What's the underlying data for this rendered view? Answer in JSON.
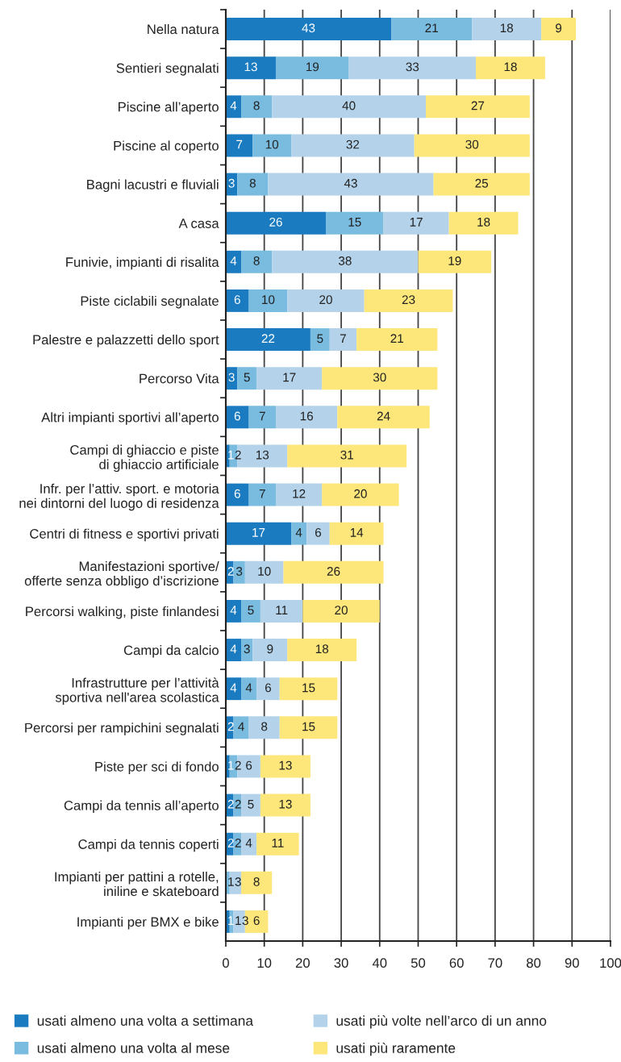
{
  "chart_data": {
    "type": "bar",
    "orientation": "horizontal",
    "stacked": true,
    "categories": [
      "Nella natura",
      "Sentieri segnalati",
      "Piscine all’aperto",
      "Piscine al coperto",
      "Bagni lacustri e fluviali",
      "A casa",
      "Funivie, impianti di risalita",
      "Piste ciclabili segnalate",
      "Palestre e palazzetti dello sport",
      "Percorso Vita",
      "Altri impianti sportivi all’aperto",
      "Campi di ghiaccio e piste\ndi ghiaccio artificiale",
      "Infr. per l’attiv. sport. e motoria\nnei dintorni del luogo di residenza",
      "Centri di fitness e sportivi privati",
      "Manifestazioni sportive/\nofferte senza obbligo d’iscrizione",
      "Percorsi walking, piste finlandesi",
      "Campi da calcio",
      "Infrastrutture per l’attività\nsportiva nell'area scolastica",
      "Percorsi per rampichini segnalati",
      "Piste per sci di fondo",
      "Campi da tennis all’aperto",
      "Campi da tennis coperti",
      "Impianti per pattini a rotelle,\niniline e skateboard",
      "Impianti per BMX e bike"
    ],
    "series": [
      {
        "name": "usati almeno una volta a settimana",
        "color": "#1b7bc0",
        "values": [
          43,
          13,
          4,
          7,
          3,
          26,
          4,
          6,
          22,
          3,
          6,
          1,
          6,
          17,
          2,
          4,
          4,
          4,
          2,
          1,
          2,
          2,
          0,
          1
        ],
        "value_labels": [
          "43",
          "13",
          "4",
          "7",
          "3",
          "26",
          "4",
          "6",
          "22",
          "3",
          "6",
          "1",
          "6",
          "17",
          "2",
          "4",
          "4",
          "4",
          "2",
          "1",
          "2",
          "2",
          null,
          "1"
        ]
      },
      {
        "name": "usati almeno una volta al mese",
        "color": "#7abce0",
        "values": [
          21,
          19,
          8,
          10,
          8,
          15,
          8,
          10,
          5,
          5,
          7,
          2,
          7,
          4,
          3,
          5,
          3,
          4,
          4,
          2,
          2,
          2,
          1,
          1
        ],
        "value_labels": [
          "21",
          "19",
          "8",
          "10",
          "8",
          "15",
          "8",
          "10",
          "5",
          "5",
          "7",
          "2",
          "7",
          "4",
          "3",
          "5",
          "3",
          "4",
          "4",
          "2",
          "2",
          "2",
          "1",
          "1"
        ]
      },
      {
        "name": "usati più volte nell’arco di un anno",
        "color": "#b4d3ea",
        "values": [
          18,
          33,
          40,
          32,
          43,
          17,
          38,
          20,
          7,
          17,
          16,
          13,
          12,
          6,
          10,
          11,
          9,
          6,
          8,
          6,
          5,
          4,
          3,
          3
        ],
        "value_labels": [
          "18",
          "33",
          "40",
          "32",
          "43",
          "17",
          "38",
          "20",
          "7",
          "17",
          "16",
          "13",
          "12",
          "6",
          "10",
          "11",
          "9",
          "6",
          "8",
          "6",
          "5",
          "4",
          "3",
          "3"
        ]
      },
      {
        "name": "usati più raramente",
        "color": "#fde67a",
        "values": [
          9,
          18,
          27,
          30,
          25,
          18,
          19,
          23,
          21,
          30,
          24,
          31,
          20,
          14,
          26,
          20,
          18,
          15,
          15,
          13,
          13,
          11,
          8,
          6
        ],
        "value_labels": [
          "9",
          "18",
          "27",
          "30",
          "25",
          "18",
          "19",
          "23",
          "21",
          "30",
          "24",
          "31",
          "20",
          "14",
          "26",
          "20",
          "18",
          "15",
          "15",
          "13",
          "13",
          "11",
          "8",
          "6"
        ]
      }
    ],
    "xlim": [
      0,
      100
    ],
    "xticks": [
      0,
      10,
      20,
      30,
      40,
      50,
      60,
      70,
      80,
      90,
      100
    ],
    "grid": "x",
    "legend": "bottom"
  }
}
